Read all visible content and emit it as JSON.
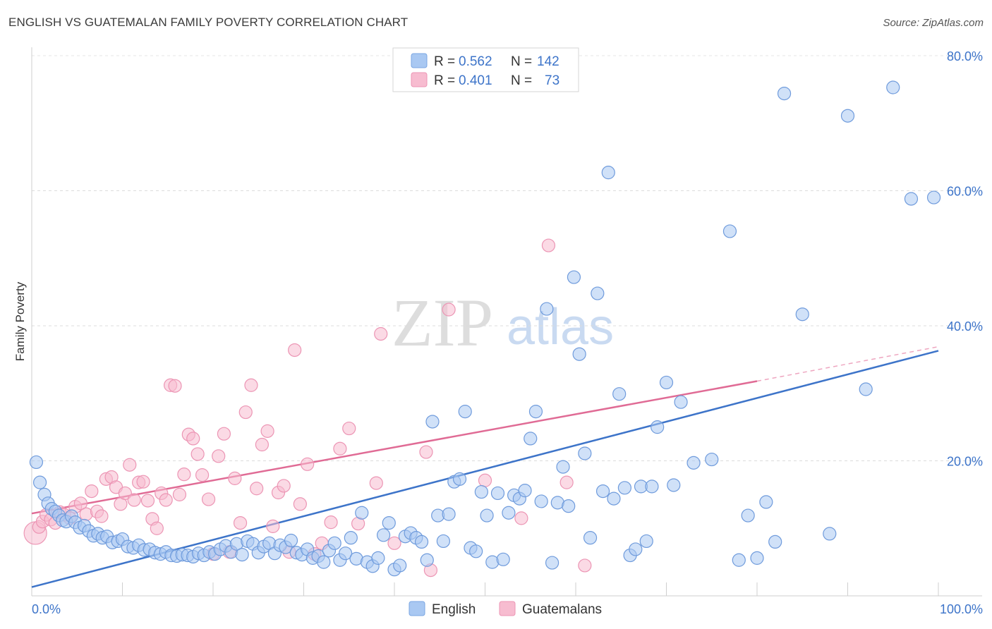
{
  "header": {
    "title": "ENGLISH VS GUATEMALAN FAMILY POVERTY CORRELATION CHART",
    "source": "Source: ZipAtlas.com"
  },
  "watermark": {
    "zip": "ZIP",
    "atlas": "atlas"
  },
  "legend": {
    "rows": [
      {
        "r_label": "R =",
        "r_value": "0.562",
        "n_label": "N =",
        "n_value": "142",
        "color": "#a9c8f2"
      },
      {
        "r_label": "R =",
        "r_value": "0.401",
        "n_label": "N =",
        "n_value": "73",
        "color": "#f7bcd0"
      }
    ]
  },
  "bottom_legend": {
    "english": "English",
    "guatemalans": "Guatemalans"
  },
  "chart_data": {
    "type": "scatter",
    "title": "ENGLISH VS GUATEMALAN FAMILY POVERTY CORRELATION CHART",
    "xlabel": "",
    "ylabel": "Family Poverty",
    "xlim": [
      0,
      100
    ],
    "ylim": [
      0,
      80
    ],
    "x_tick_labels": [
      "0.0%",
      "100.0%"
    ],
    "y_ticks": [
      20,
      40,
      60,
      80
    ],
    "y_tick_labels": [
      "20.0%",
      "40.0%",
      "60.0%",
      "80.0%"
    ],
    "grid": true,
    "legend_position": "top-center",
    "colors": {
      "english": "#3d74c9",
      "english_fill": "#a9c8f2",
      "guatemalans": "#e06b95",
      "guatemalans_fill": "#f7bcd0"
    },
    "series": [
      {
        "name": "English",
        "stats": {
          "R": 0.562,
          "N": 142
        },
        "trend": {
          "x": [
            0,
            100
          ],
          "y": [
            1.3,
            36.3
          ]
        },
        "points": [
          [
            0.5,
            19.8
          ],
          [
            0.9,
            16.8
          ],
          [
            1.4,
            15.0
          ],
          [
            1.8,
            13.7
          ],
          [
            2.2,
            12.9
          ],
          [
            2.6,
            12.5
          ],
          [
            3.0,
            11.9
          ],
          [
            3.4,
            11.2
          ],
          [
            3.8,
            11.0
          ],
          [
            4.4,
            11.8
          ],
          [
            4.8,
            10.9
          ],
          [
            5.3,
            10.1
          ],
          [
            5.8,
            10.4
          ],
          [
            6.3,
            9.6
          ],
          [
            6.8,
            8.9
          ],
          [
            7.3,
            9.2
          ],
          [
            7.8,
            8.6
          ],
          [
            8.3,
            8.8
          ],
          [
            8.9,
            7.9
          ],
          [
            9.5,
            8.1
          ],
          [
            10.0,
            8.4
          ],
          [
            10.6,
            7.3
          ],
          [
            11.2,
            7.1
          ],
          [
            11.8,
            7.5
          ],
          [
            12.4,
            6.8
          ],
          [
            13.0,
            6.9
          ],
          [
            13.6,
            6.4
          ],
          [
            14.2,
            6.2
          ],
          [
            14.8,
            6.5
          ],
          [
            15.4,
            6.0
          ],
          [
            16.0,
            5.9
          ],
          [
            16.6,
            6.1
          ],
          [
            17.2,
            6.0
          ],
          [
            17.8,
            5.8
          ],
          [
            18.4,
            6.3
          ],
          [
            19.0,
            6.0
          ],
          [
            19.6,
            6.5
          ],
          [
            20.2,
            6.2
          ],
          [
            20.8,
            6.9
          ],
          [
            21.4,
            7.4
          ],
          [
            22.0,
            6.5
          ],
          [
            22.6,
            7.7
          ],
          [
            23.2,
            6.1
          ],
          [
            23.8,
            8.1
          ],
          [
            24.4,
            7.7
          ],
          [
            25.0,
            6.4
          ],
          [
            25.6,
            7.3
          ],
          [
            26.2,
            7.8
          ],
          [
            26.8,
            6.3
          ],
          [
            27.4,
            7.5
          ],
          [
            28.0,
            7.2
          ],
          [
            28.6,
            8.2
          ],
          [
            29.2,
            6.4
          ],
          [
            29.8,
            6.1
          ],
          [
            30.4,
            6.9
          ],
          [
            31.0,
            5.6
          ],
          [
            31.6,
            5.9
          ],
          [
            32.2,
            5.0
          ],
          [
            32.8,
            6.7
          ],
          [
            33.4,
            7.8
          ],
          [
            34.0,
            5.3
          ],
          [
            34.6,
            6.3
          ],
          [
            35.2,
            8.6
          ],
          [
            35.8,
            5.5
          ],
          [
            36.4,
            12.3
          ],
          [
            37.0,
            5.0
          ],
          [
            37.6,
            4.4
          ],
          [
            38.2,
            5.6
          ],
          [
            38.8,
            9.0
          ],
          [
            39.4,
            10.8
          ],
          [
            40.0,
            3.9
          ],
          [
            40.6,
            4.5
          ],
          [
            41.2,
            8.8
          ],
          [
            41.8,
            9.3
          ],
          [
            42.4,
            8.6
          ],
          [
            43.0,
            8.0
          ],
          [
            43.6,
            5.3
          ],
          [
            44.2,
            25.8
          ],
          [
            44.8,
            11.9
          ],
          [
            45.4,
            8.1
          ],
          [
            46.0,
            12.1
          ],
          [
            46.6,
            16.9
          ],
          [
            47.2,
            17.3
          ],
          [
            47.8,
            27.3
          ],
          [
            48.4,
            7.1
          ],
          [
            49.0,
            6.6
          ],
          [
            49.6,
            15.4
          ],
          [
            50.2,
            11.9
          ],
          [
            50.8,
            5.0
          ],
          [
            51.4,
            15.2
          ],
          [
            52.0,
            5.4
          ],
          [
            52.6,
            12.3
          ],
          [
            53.2,
            14.9
          ],
          [
            53.8,
            14.4
          ],
          [
            54.4,
            15.6
          ],
          [
            55.0,
            23.3
          ],
          [
            55.6,
            27.3
          ],
          [
            56.2,
            14.0
          ],
          [
            56.8,
            42.5
          ],
          [
            57.4,
            4.9
          ],
          [
            58.0,
            13.8
          ],
          [
            58.6,
            19.1
          ],
          [
            59.2,
            13.3
          ],
          [
            59.8,
            47.2
          ],
          [
            60.4,
            35.8
          ],
          [
            61.0,
            21.1
          ],
          [
            61.6,
            8.6
          ],
          [
            62.4,
            44.8
          ],
          [
            63.0,
            15.5
          ],
          [
            63.6,
            62.7
          ],
          [
            64.2,
            14.4
          ],
          [
            64.8,
            29.9
          ],
          [
            65.4,
            16.0
          ],
          [
            66.0,
            6.0
          ],
          [
            66.6,
            6.9
          ],
          [
            67.2,
            16.2
          ],
          [
            67.8,
            8.1
          ],
          [
            68.4,
            16.2
          ],
          [
            69.0,
            25.0
          ],
          [
            70.0,
            31.6
          ],
          [
            70.8,
            16.4
          ],
          [
            71.6,
            28.7
          ],
          [
            73.0,
            19.7
          ],
          [
            75.0,
            20.2
          ],
          [
            77.0,
            54.0
          ],
          [
            78.0,
            5.3
          ],
          [
            79.0,
            11.9
          ],
          [
            80.0,
            5.6
          ],
          [
            81.0,
            13.9
          ],
          [
            82.0,
            8.0
          ],
          [
            83.0,
            74.4
          ],
          [
            85.0,
            41.7
          ],
          [
            88.0,
            9.2
          ],
          [
            90.0,
            71.1
          ],
          [
            92.0,
            30.6
          ],
          [
            95.0,
            75.3
          ],
          [
            97.0,
            58.8
          ],
          [
            99.5,
            59.0
          ]
        ]
      },
      {
        "name": "Guatemalans",
        "stats": {
          "R": 0.401,
          "N": 73
        },
        "trend": {
          "x": [
            0,
            80
          ],
          "y": [
            12.2,
            31.8
          ]
        },
        "trend_dashed": {
          "x": [
            80,
            100
          ],
          "y": [
            31.8,
            36.9
          ]
        },
        "points": [
          [
            0.4,
            9.3
          ],
          [
            0.8,
            10.2
          ],
          [
            1.2,
            11.0
          ],
          [
            1.6,
            12.0
          ],
          [
            2.1,
            11.3
          ],
          [
            2.6,
            10.8
          ],
          [
            3.1,
            12.4
          ],
          [
            3.6,
            12.0
          ],
          [
            4.2,
            11.5
          ],
          [
            4.8,
            13.2
          ],
          [
            5.4,
            13.7
          ],
          [
            6.0,
            12.1
          ],
          [
            6.6,
            15.5
          ],
          [
            7.2,
            12.5
          ],
          [
            7.7,
            11.8
          ],
          [
            8.2,
            17.3
          ],
          [
            8.8,
            17.6
          ],
          [
            9.3,
            16.1
          ],
          [
            9.8,
            13.6
          ],
          [
            10.3,
            15.2
          ],
          [
            10.8,
            19.4
          ],
          [
            11.3,
            14.2
          ],
          [
            11.8,
            16.8
          ],
          [
            12.3,
            16.9
          ],
          [
            12.8,
            14.1
          ],
          [
            13.3,
            11.4
          ],
          [
            13.8,
            10.0
          ],
          [
            14.3,
            15.2
          ],
          [
            14.8,
            14.2
          ],
          [
            15.3,
            31.2
          ],
          [
            15.8,
            31.1
          ],
          [
            16.3,
            15.0
          ],
          [
            16.8,
            18.0
          ],
          [
            17.3,
            23.9
          ],
          [
            17.8,
            23.3
          ],
          [
            18.3,
            21.0
          ],
          [
            18.8,
            17.9
          ],
          [
            19.5,
            14.3
          ],
          [
            20.0,
            6.2
          ],
          [
            20.6,
            20.7
          ],
          [
            21.2,
            24.0
          ],
          [
            21.8,
            6.5
          ],
          [
            22.4,
            17.4
          ],
          [
            23.0,
            10.8
          ],
          [
            23.6,
            27.2
          ],
          [
            24.2,
            31.2
          ],
          [
            24.8,
            15.9
          ],
          [
            25.4,
            22.4
          ],
          [
            26.0,
            24.4
          ],
          [
            26.6,
            10.3
          ],
          [
            27.2,
            15.3
          ],
          [
            27.8,
            16.3
          ],
          [
            28.4,
            6.5
          ],
          [
            29.0,
            36.4
          ],
          [
            29.6,
            13.6
          ],
          [
            30.4,
            19.5
          ],
          [
            31.2,
            6.2
          ],
          [
            32.0,
            7.8
          ],
          [
            33.0,
            10.9
          ],
          [
            34.0,
            21.8
          ],
          [
            35.0,
            24.8
          ],
          [
            36.0,
            10.7
          ],
          [
            38.0,
            16.7
          ],
          [
            38.5,
            38.8
          ],
          [
            40.0,
            7.8
          ],
          [
            43.5,
            21.3
          ],
          [
            44.0,
            3.8
          ],
          [
            46.0,
            42.4
          ],
          [
            50.0,
            17.1
          ],
          [
            54.0,
            11.5
          ],
          [
            57.0,
            51.9
          ],
          [
            59.0,
            16.8
          ],
          [
            61.0,
            4.5
          ]
        ]
      }
    ]
  }
}
